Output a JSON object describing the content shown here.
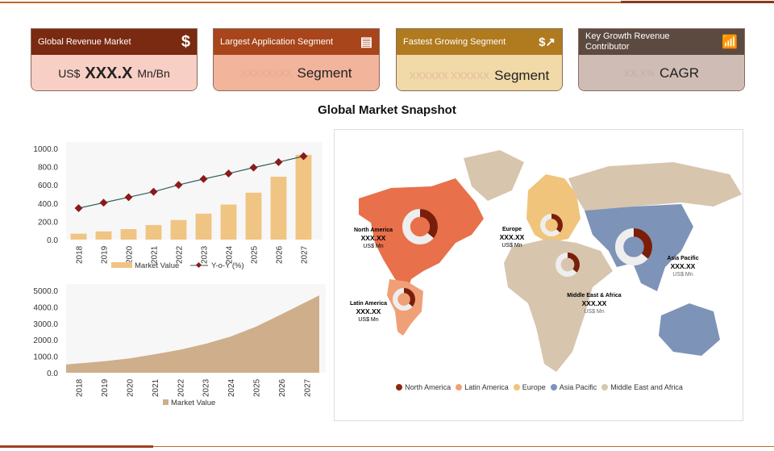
{
  "cards": [
    {
      "header": "Global Revenue Market",
      "icon": "dollar-icon",
      "prefix": "US$",
      "value": "XXX.X",
      "suffix": "Mn/Bn",
      "header_color": "#7a2a10",
      "body_color": "#f8cfc4"
    },
    {
      "header": "Largest Application Segment",
      "icon": "document-icon",
      "ghost": "XXXXXXXX",
      "value": "Segment",
      "header_color": "#a8451a",
      "body_color": "#f2b49a"
    },
    {
      "header": "Fastest Growing Segment",
      "icon": "growth-chart-icon",
      "ghost": "XXXXXX XXXXXX",
      "value": "Segment",
      "header_color": "#b07a1e",
      "body_color": "#f1d9a8"
    },
    {
      "header": "Key Growth Revenue Contributor",
      "icon": "bar-chart-icon",
      "ghost": "XX.X%",
      "value": "CAGR",
      "header_color": "#5c4a40",
      "body_color": "#cfbdb5"
    }
  ],
  "title": "Global Market Snapshot",
  "chart_data": [
    {
      "type": "bar",
      "categories": [
        "2018",
        "2019",
        "2020",
        "2021",
        "2022",
        "2023",
        "2024",
        "2025",
        "2026",
        "2027"
      ],
      "series": [
        {
          "name": "Market Value",
          "type": "bar",
          "values": [
            65,
            90,
            115,
            160,
            215,
            285,
            385,
            515,
            690,
            930
          ],
          "color": "#f0c483"
        },
        {
          "name": "Y-o-Y (%)",
          "type": "line",
          "values": [
            345,
            405,
            465,
            525,
            600,
            665,
            725,
            790,
            850,
            915
          ],
          "color": "#2e5e5a",
          "marker_color": "#8b1a1a"
        }
      ],
      "yticks": [
        "0.0",
        "200.0",
        "400.0",
        "600.0",
        "800.0",
        "1000.0"
      ],
      "ylim": [
        0,
        1000
      ],
      "legend": "bottom"
    },
    {
      "type": "area",
      "categories": [
        "2018",
        "2019",
        "2020",
        "2021",
        "2022",
        "2023",
        "2024",
        "2025",
        "2026",
        "2027"
      ],
      "series": [
        {
          "name": "Market Value",
          "values": [
            500,
            700,
            870,
            1120,
            1400,
            1750,
            2200,
            2800,
            3550,
            4700
          ],
          "color": "#cfae8c"
        }
      ],
      "yticks": [
        "0.0",
        "1000.0",
        "2000.0",
        "3000.0",
        "4000.0",
        "5000.0"
      ],
      "ylim": [
        0,
        5000
      ],
      "legend": "bottom"
    }
  ],
  "map": {
    "regions": [
      {
        "name": "North America",
        "value": "XXX.XX",
        "unit": "US$ Mn",
        "color": "#e8704a"
      },
      {
        "name": "Latin America",
        "value": "XXX.XX",
        "unit": "US$ Mn",
        "color": "#f0a077"
      },
      {
        "name": "Europe",
        "value": "XXX.XX",
        "unit": "US$ Mn",
        "color": "#f0c47a"
      },
      {
        "name": "Asia Pacific",
        "value": "XXX.XX",
        "unit": "US$ Mn",
        "color": "#7d93b8"
      },
      {
        "name": "Middle East & Africa",
        "value": "XXX.XX",
        "unit": "US$ Mn",
        "color": "#d8c5ae"
      }
    ],
    "legend": [
      {
        "label": "North America",
        "color": "#8b2a10"
      },
      {
        "label": "Latin America",
        "color": "#f0a077"
      },
      {
        "label": "Europe",
        "color": "#f0c47a"
      },
      {
        "label": "Asia Pacific",
        "color": "#7d93b8"
      },
      {
        "label": "Middle East and Africa",
        "color": "#d8c5ae"
      }
    ]
  }
}
